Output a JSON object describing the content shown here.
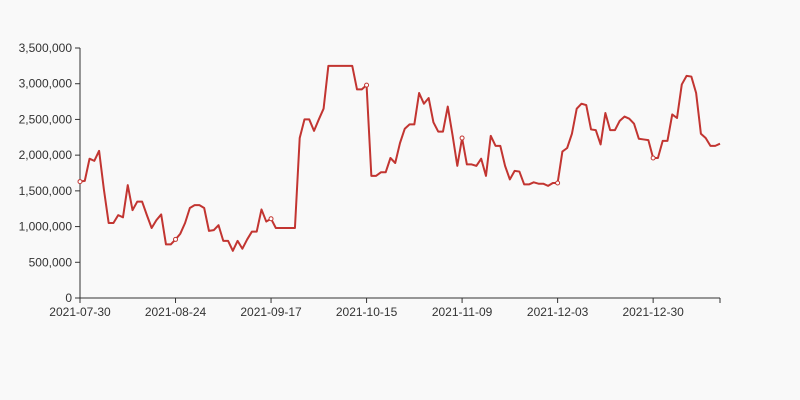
{
  "chart_data": {
    "type": "line",
    "title": "",
    "xlabel": "",
    "ylabel": "",
    "colors": {
      "line": "#c23531",
      "axis": "#333333",
      "marker_fill": "#ffffff"
    },
    "ylim": [
      0,
      3500000
    ],
    "y_ticks": [
      {
        "value": 0,
        "label": "0"
      },
      {
        "value": 500000,
        "label": "500,000"
      },
      {
        "value": 1000000,
        "label": "1,000,000"
      },
      {
        "value": 1500000,
        "label": "1,500,000"
      },
      {
        "value": 2000000,
        "label": "2,000,000"
      },
      {
        "value": 2500000,
        "label": "2,500,000"
      },
      {
        "value": 3000000,
        "label": "3,000,000"
      },
      {
        "value": 3500000,
        "label": "3,500,000"
      }
    ],
    "x_tick_labels": [
      "2021-07-30",
      "2021-08-24",
      "2021-09-17",
      "2021-10-15",
      "2021-11-09",
      "2021-12-03",
      "2021-12-30"
    ],
    "x_tick_every": 20,
    "marker_every": 20,
    "values": [
      1630000,
      1640000,
      1950000,
      1920000,
      2060000,
      1520000,
      1050000,
      1050000,
      1160000,
      1130000,
      1580000,
      1230000,
      1350000,
      1350000,
      1160000,
      980000,
      1090000,
      1170000,
      750000,
      750000,
      820000,
      900000,
      1050000,
      1260000,
      1300000,
      1300000,
      1260000,
      940000,
      950000,
      1020000,
      800000,
      800000,
      660000,
      800000,
      690000,
      820000,
      930000,
      930000,
      1240000,
      1070000,
      1110000,
      980000,
      980000,
      980000,
      980000,
      980000,
      2240000,
      2500000,
      2500000,
      2340000,
      2500000,
      2650000,
      3250000,
      3250000,
      3250000,
      3250000,
      3250000,
      3250000,
      2920000,
      2920000,
      2980000,
      1710000,
      1710000,
      1760000,
      1760000,
      1960000,
      1890000,
      2170000,
      2370000,
      2430000,
      2430000,
      2870000,
      2720000,
      2800000,
      2460000,
      2330000,
      2330000,
      2680000,
      2280000,
      1850000,
      2240000,
      1870000,
      1870000,
      1850000,
      1950000,
      1710000,
      2270000,
      2130000,
      2130000,
      1850000,
      1660000,
      1780000,
      1770000,
      1590000,
      1590000,
      1620000,
      1600000,
      1600000,
      1570000,
      1610000,
      1610000,
      2050000,
      2100000,
      2300000,
      2650000,
      2720000,
      2700000,
      2360000,
      2350000,
      2150000,
      2590000,
      2350000,
      2350000,
      2480000,
      2540000,
      2510000,
      2440000,
      2230000,
      2220000,
      2210000,
      1960000,
      1960000,
      2200000,
      2200000,
      2570000,
      2520000,
      2990000,
      3110000,
      3100000,
      2870000,
      2300000,
      2240000,
      2130000,
      2130000,
      2160000
    ]
  }
}
